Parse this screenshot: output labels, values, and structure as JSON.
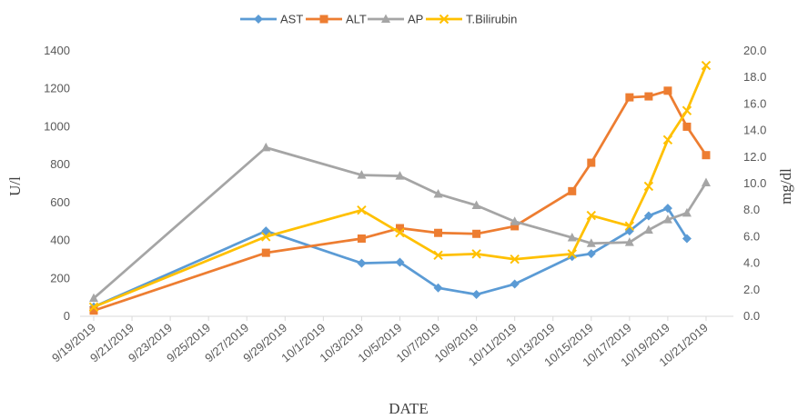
{
  "chart_data": {
    "type": "line",
    "xlabel": "DATE",
    "ylabel_left": "U/l",
    "ylabel_right": "mg/dl",
    "ylim_left": [
      0,
      1400
    ],
    "yticks_left": [
      "0",
      "200",
      "400",
      "600",
      "800",
      "1000",
      "1200",
      "1400"
    ],
    "ylim_right": [
      0,
      20
    ],
    "yticks_right": [
      "0.0",
      "2.0",
      "4.0",
      "6.0",
      "8.0",
      "10.0",
      "12.0",
      "14.0",
      "16.0",
      "18.0",
      "20.0"
    ],
    "xlim": [
      "2019-09-19",
      "2019-10-22"
    ],
    "xticks": [
      "9/19/2019",
      "9/21/2019",
      "9/23/2019",
      "9/25/2019",
      "9/27/2019",
      "9/29/2019",
      "10/1/2019",
      "10/3/2019",
      "10/5/2019",
      "10/7/2019",
      "10/9/2019",
      "10/11/2019",
      "10/13/2019",
      "10/15/2019",
      "10/17/2019",
      "10/19/2019",
      "10/21/2019"
    ],
    "grid": false,
    "legend_position": "top",
    "series": [
      {
        "name": "AST",
        "axis": "left",
        "color": "#5b9bd5",
        "marker": "diamond",
        "points": [
          [
            "2019-09-19",
            50
          ],
          [
            "2019-09-28",
            450
          ],
          [
            "2019-10-03",
            280
          ],
          [
            "2019-10-05",
            285
          ],
          [
            "2019-10-07",
            150
          ],
          [
            "2019-10-09",
            115
          ],
          [
            "2019-10-11",
            170
          ],
          [
            "2019-10-14",
            315
          ],
          [
            "2019-10-15",
            330
          ],
          [
            "2019-10-17",
            450
          ],
          [
            "2019-10-18",
            530
          ],
          [
            "2019-10-19",
            570
          ],
          [
            "2019-10-20",
            410
          ]
        ]
      },
      {
        "name": "ALT",
        "axis": "left",
        "color": "#ed7d31",
        "marker": "square",
        "points": [
          [
            "2019-09-19",
            30
          ],
          [
            "2019-09-28",
            335
          ],
          [
            "2019-10-03",
            410
          ],
          [
            "2019-10-05",
            465
          ],
          [
            "2019-10-07",
            440
          ],
          [
            "2019-10-09",
            435
          ],
          [
            "2019-10-11",
            475
          ],
          [
            "2019-10-14",
            660
          ],
          [
            "2019-10-15",
            810
          ],
          [
            "2019-10-17",
            1155
          ],
          [
            "2019-10-18",
            1160
          ],
          [
            "2019-10-19",
            1190
          ],
          [
            "2019-10-20",
            1000
          ],
          [
            "2019-10-21",
            850
          ]
        ]
      },
      {
        "name": "AP",
        "axis": "left",
        "color": "#a5a5a5",
        "marker": "triangle",
        "points": [
          [
            "2019-09-19",
            95
          ],
          [
            "2019-09-28",
            890
          ],
          [
            "2019-10-03",
            745
          ],
          [
            "2019-10-05",
            740
          ],
          [
            "2019-10-07",
            645
          ],
          [
            "2019-10-09",
            585
          ],
          [
            "2019-10-11",
            500
          ],
          [
            "2019-10-14",
            415
          ],
          [
            "2019-10-15",
            385
          ],
          [
            "2019-10-17",
            390
          ],
          [
            "2019-10-18",
            455
          ],
          [
            "2019-10-19",
            510
          ],
          [
            "2019-10-20",
            545
          ],
          [
            "2019-10-21",
            705
          ]
        ]
      },
      {
        "name": "T.Bilirubin",
        "axis": "right",
        "color": "#ffc000",
        "marker": "x",
        "points": [
          [
            "2019-09-19",
            0.7
          ],
          [
            "2019-09-28",
            6.0
          ],
          [
            "2019-10-03",
            8.0
          ],
          [
            "2019-10-05",
            6.3
          ],
          [
            "2019-10-07",
            4.6
          ],
          [
            "2019-10-09",
            4.7
          ],
          [
            "2019-10-11",
            4.3
          ],
          [
            "2019-10-14",
            4.7
          ],
          [
            "2019-10-15",
            7.6
          ],
          [
            "2019-10-17",
            6.8
          ],
          [
            "2019-10-18",
            9.8
          ],
          [
            "2019-10-19",
            13.3
          ],
          [
            "2019-10-20",
            15.5
          ],
          [
            "2019-10-21",
            18.9
          ]
        ]
      }
    ]
  }
}
